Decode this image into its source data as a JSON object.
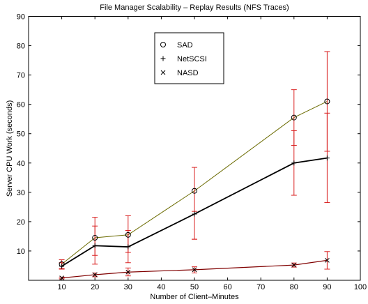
{
  "chart_data": {
    "type": "line",
    "title": "File Manager Scalability – Replay Results (NFS Traces)",
    "xlabel": "Number of Client–Minutes",
    "ylabel": "Server CPU Work (seconds)",
    "xlim": [
      0,
      100
    ],
    "ylim": [
      0,
      90
    ],
    "xticks": [
      10,
      20,
      30,
      40,
      50,
      60,
      70,
      80,
      90,
      100
    ],
    "yticks": [
      10,
      20,
      30,
      40,
      50,
      60,
      70,
      80,
      90
    ],
    "grid": false,
    "legend_position": "top-center",
    "x": [
      10,
      20,
      30,
      50,
      80,
      90
    ],
    "series": [
      {
        "name": "SAD",
        "marker": "circle",
        "line_color": "#6b6b00",
        "values": [
          5.5,
          14.5,
          15.5,
          30.5,
          55.5,
          61
        ],
        "error_low": [
          4.0,
          8.5,
          9.5,
          14.0,
          46.0,
          44.0
        ],
        "error_high": [
          7.0,
          21.5,
          22.0,
          38.5,
          65.0,
          78.0
        ]
      },
      {
        "name": "NetSCSI",
        "marker": "plus",
        "line_color": "#000000",
        "values": [
          4.8,
          11.8,
          11.4,
          22.6,
          40.0,
          41.7
        ],
        "error_low": [
          3.8,
          5.5,
          6.0,
          14.0,
          29.0,
          26.5
        ],
        "error_high": [
          6.0,
          18.5,
          17.0,
          23.5,
          51.0,
          57.0
        ]
      },
      {
        "name": "NASD",
        "marker": "x",
        "line_color": "#800000",
        "values": [
          0.8,
          1.9,
          2.8,
          3.6,
          5.2,
          6.8
        ],
        "error_low": [
          0.5,
          1.2,
          1.5,
          2.5,
          4.5,
          3.8
        ],
        "error_high": [
          1.1,
          2.5,
          4.2,
          4.6,
          5.9,
          9.8
        ]
      }
    ],
    "error_bar_color": "#d92020"
  }
}
